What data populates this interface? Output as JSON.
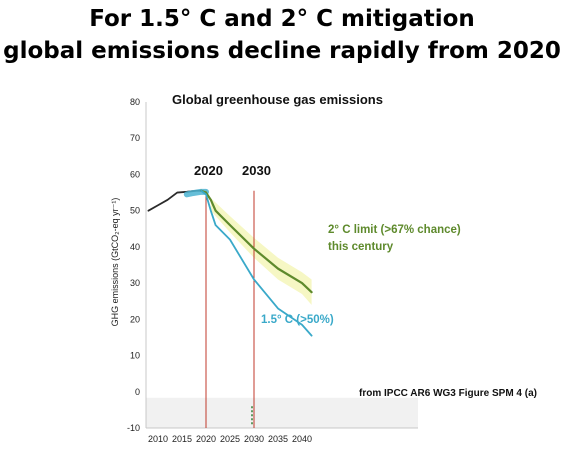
{
  "headline": {
    "line1": "For 1.5° C and 2° C mitigation",
    "line2": "global emissions decline rapidly from 2020"
  },
  "chart_data": {
    "type": "line",
    "title": "Global greenhouse gas emissions",
    "ylabel": "GHG emissions (GtCO₂-eq yr⁻¹)",
    "xlabel": "",
    "xlim": [
      2008,
      2042
    ],
    "ylim": [
      -10,
      80
    ],
    "xticks": [
      2010,
      2015,
      2020,
      2025,
      2030,
      2035,
      2040
    ],
    "yticks": [
      -10,
      0,
      10,
      20,
      30,
      40,
      50,
      60,
      70,
      80
    ],
    "grid": false,
    "series": [
      {
        "name": "",
        "color": "#2b2b2b",
        "x": [
          2008,
          2010,
          2012,
          2014,
          2016,
          2018,
          2019
        ],
        "y": [
          50,
          51.5,
          53,
          55,
          55.2,
          55.5,
          55.5
        ]
      },
      {
        "name": "",
        "color": "#4bb3d1",
        "x": [
          2016,
          2017,
          2018,
          2019,
          2020
        ],
        "y": [
          54.5,
          54.8,
          55,
          55.2,
          55.2
        ]
      },
      {
        "name": "2° C limit (>67% chance) this century",
        "color": "#5e8a2c",
        "x": [
          2019,
          2020,
          2021,
          2022,
          2025,
          2030,
          2035,
          2040,
          2042
        ],
        "y": [
          55.5,
          55,
          53,
          50,
          46,
          39.5,
          34,
          30,
          27.5
        ]
      },
      {
        "name": "1.5° C (>50%)",
        "color": "#3aa9c9",
        "x": [
          2019,
          2020,
          2021,
          2022,
          2025,
          2030,
          2035,
          2040,
          2042
        ],
        "y": [
          55.5,
          54.5,
          50,
          46,
          42,
          31,
          23,
          18.5,
          15.5
        ]
      }
    ],
    "bands": [
      {
        "color": "#f6f7c4",
        "x": [
          2021,
          2025,
          2030,
          2035,
          2040,
          2042
        ],
        "upper": [
          53.5,
          48.5,
          42.5,
          37,
          33,
          31
        ],
        "lower": [
          50,
          44,
          37,
          31,
          27,
          24
        ]
      }
    ],
    "markers": [
      {
        "label": "2020",
        "x": 2020
      },
      {
        "label": "2030",
        "x": 2030
      }
    ],
    "annotations": {
      "green_line1": "2° C limit (>67% chance)",
      "green_line2": "this century",
      "blue": "1.5° C (>50%)"
    },
    "source": "from IPCC AR6 WG3 Figure SPM 4 (a)"
  }
}
